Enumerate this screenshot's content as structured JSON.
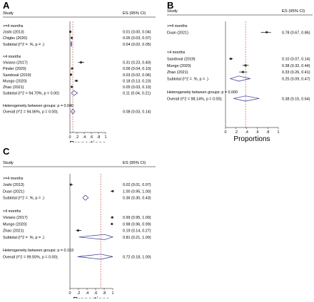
{
  "chart_data": [
    {
      "type": "forest",
      "panel": "A",
      "header_study": "Study",
      "header_es": "ES (95% CI)",
      "xlabel": "Proportions",
      "xticks": [
        "0",
        ".2",
        ".4",
        ".6",
        ".8",
        "1"
      ],
      "xlim": [
        0,
        1
      ],
      "ref_line": 0.08,
      "rows": [
        {
          "kind": "group",
          "label": ">=4 months"
        },
        {
          "kind": "study",
          "label": "Joshi (2013)",
          "es": 0.01,
          "lo": 0.0,
          "hi": 0.04,
          "text": "0.01 (0.00, 0.04)"
        },
        {
          "kind": "study",
          "label": "Chigbu (2020)",
          "es": 0.05,
          "lo": 0.03,
          "hi": 0.07,
          "text": "0.05 (0.03, 0.07)"
        },
        {
          "kind": "subtotal",
          "label": "Subtotal  (I^2 = .%, p = .)",
          "es": 0.04,
          "lo": 0.02,
          "hi": 0.05,
          "text": "0.04 (0.02, 0.05)"
        },
        {
          "kind": "spacer"
        },
        {
          "kind": "group",
          "label": "<4 months"
        },
        {
          "kind": "study",
          "label": "Viviano (2017)",
          "es": 0.31,
          "lo": 0.23,
          "hi": 0.4,
          "text": "0.31 (0.23, 0.40)"
        },
        {
          "kind": "study",
          "label": "Pinder  (2020)",
          "es": 0.06,
          "lo": 0.04,
          "hi": 0.1,
          "text": "0.06 (0.04, 0.10)"
        },
        {
          "kind": "study",
          "label": "Sandoval (2019)",
          "es": 0.03,
          "lo": 0.02,
          "hi": 0.06,
          "text": "0.03 (0.02, 0.06)"
        },
        {
          "kind": "study",
          "label": "Mungo (2020)",
          "es": 0.18,
          "lo": 0.13,
          "hi": 0.23,
          "text": "0.18 (0.13, 0.23)"
        },
        {
          "kind": "study",
          "label": "Zhao (2021)",
          "es": 0.05,
          "lo": 0.03,
          "hi": 0.1,
          "text": "0.05 (0.03, 0.10)"
        },
        {
          "kind": "subtotal",
          "label": "Subtotal  (I^2 = 94.70%, p = 0.00)",
          "es": 0.11,
          "lo": 0.04,
          "hi": 0.21,
          "text": "0.11 (0.04, 0.21)"
        },
        {
          "kind": "spacer"
        },
        {
          "kind": "note",
          "label": "Heterogeneity between groups: p = 0.040"
        },
        {
          "kind": "overall",
          "label": "Overall  (I^2 = 94.06%, p = 0.00);",
          "es": 0.08,
          "lo": 0.03,
          "hi": 0.14,
          "text": "0.08 (0.03, 0.14)"
        }
      ]
    },
    {
      "type": "forest",
      "panel": "B",
      "header_study": "Study",
      "header_es": "ES (95% CI)",
      "xlabel": "Proportions",
      "xticks": [
        "0",
        ".2",
        ".4",
        ".6",
        ".8",
        "1"
      ],
      "xlim": [
        0,
        1
      ],
      "ref_line": 0.38,
      "rows": [
        {
          "kind": "group",
          "label": ">=4 months"
        },
        {
          "kind": "study",
          "label": "Duan (2021)",
          "es": 0.78,
          "lo": 0.67,
          "hi": 0.86,
          "text": "0.78 (0.67, 0.86)"
        },
        {
          "kind": "spacer"
        },
        {
          "kind": "spacer"
        },
        {
          "kind": "group",
          "label": "<4 months"
        },
        {
          "kind": "study",
          "label": "Sandoval (2019)",
          "es": 0.1,
          "lo": 0.07,
          "hi": 0.14,
          "text": "0.10 (0.07, 0.14)"
        },
        {
          "kind": "study",
          "label": "Mungo (2020)",
          "es": 0.38,
          "lo": 0.32,
          "hi": 0.44,
          "text": "0.38 (0.32, 0.44)"
        },
        {
          "kind": "study",
          "label": "Zhao (2021)",
          "es": 0.33,
          "lo": 0.26,
          "hi": 0.41,
          "text": "0.33 (0.26, 0.41)"
        },
        {
          "kind": "subtotal",
          "label": "Subtotal  (I^2 = .%, p = .)",
          "es": 0.25,
          "lo": 0.09,
          "hi": 0.47,
          "text": "0.25 (0.09, 0.47)"
        },
        {
          "kind": "spacer"
        },
        {
          "kind": "note",
          "label": "Heterogeneity between groups: p = 0.000"
        },
        {
          "kind": "overall",
          "label": "Overall  (I^2 = 98.14%, p = 0.00);",
          "es": 0.38,
          "lo": 0.15,
          "hi": 0.64,
          "text": "0.38 (0.15, 0.64)"
        }
      ]
    },
    {
      "type": "forest",
      "panel": "C",
      "header_study": "Study",
      "header_es": "ES (95% CI)",
      "xlabel": "Proportions",
      "xticks": [
        "0",
        ".2",
        ".4",
        ".6",
        ".8",
        "1"
      ],
      "xlim": [
        0,
        1
      ],
      "ref_line": 0.72,
      "rows": [
        {
          "kind": "group",
          "label": ">=4 months"
        },
        {
          "kind": "study",
          "label": "Joshi (2013)",
          "es": 0.02,
          "lo": 0.01,
          "hi": 0.07,
          "text": "0.02 (0.01, 0.07)"
        },
        {
          "kind": "study",
          "label": "Duan (2021)",
          "es": 1.0,
          "lo": 0.95,
          "hi": 1.0,
          "text": "1.00 (0.95, 1.00)"
        },
        {
          "kind": "subtotal",
          "label": "Subtotal  (I^2 = .%, p = .)",
          "es": 0.36,
          "lo": 0.3,
          "hi": 0.43,
          "text": "0.36 (0.30, 0.43)"
        },
        {
          "kind": "spacer"
        },
        {
          "kind": "group",
          "label": "<4 months"
        },
        {
          "kind": "study",
          "label": "Viviano (2017)",
          "es": 0.99,
          "lo": 0.95,
          "hi": 1.0,
          "text": "0.99 (0.95, 1.00)"
        },
        {
          "kind": "study",
          "label": "Mungo (2020)",
          "es": 0.98,
          "lo": 0.96,
          "hi": 0.99,
          "text": "0.98 (0.96, 0.99)"
        },
        {
          "kind": "study",
          "label": "Zhao (2021)",
          "es": 0.19,
          "lo": 0.14,
          "hi": 0.27,
          "text": "0.19 (0.14, 0.27)"
        },
        {
          "kind": "subtotal",
          "label": "Subtotal  (I^2 = .%, p = .)",
          "es": 0.81,
          "lo": 0.21,
          "hi": 1.0,
          "text": "0.81 (0.21, 1.00)"
        },
        {
          "kind": "spacer"
        },
        {
          "kind": "note",
          "label": "Heterogeneity between groups: p = 0.153"
        },
        {
          "kind": "overall",
          "label": "Overall  (I^2 = 99.55%, p = 0.00);",
          "es": 0.72,
          "lo": 0.18,
          "hi": 1.0,
          "text": "0.72 (0.18, 1.00)"
        }
      ]
    }
  ]
}
